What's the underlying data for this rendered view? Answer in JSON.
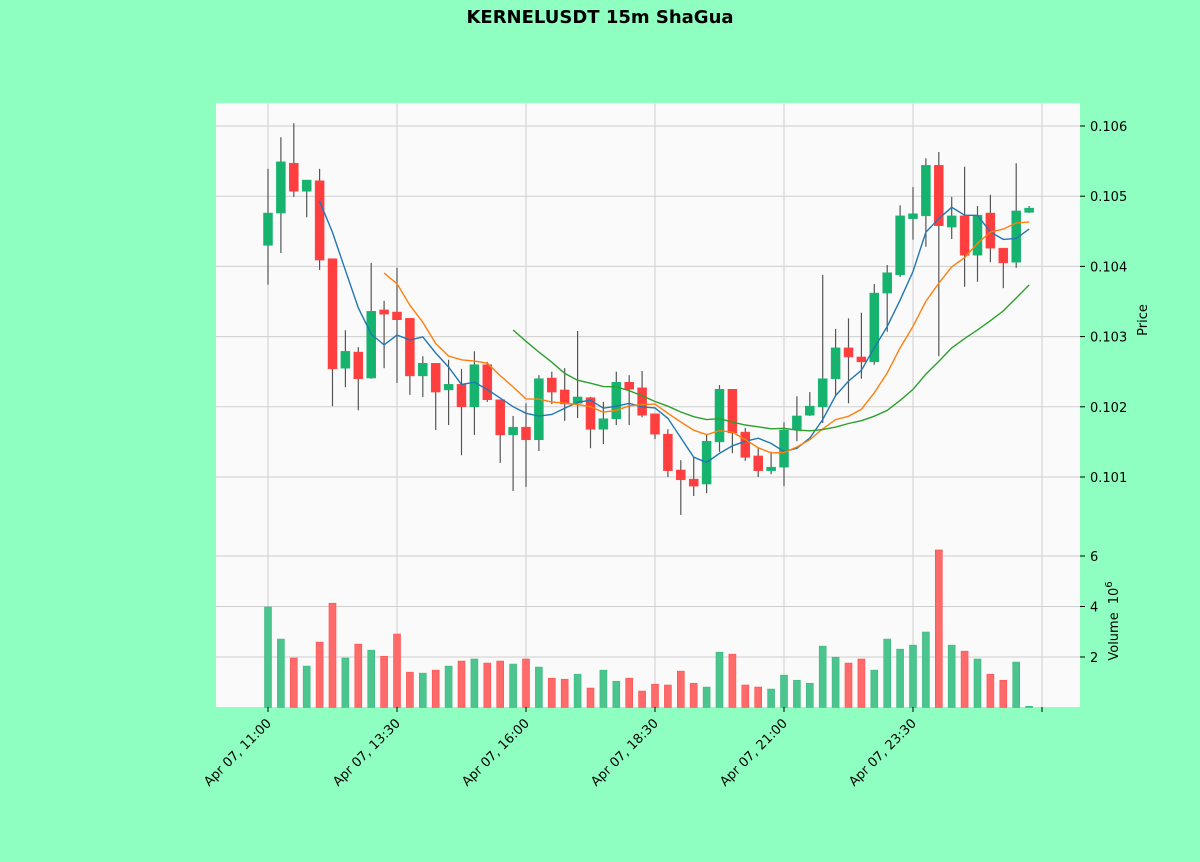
{
  "chart_data": {
    "type": "candlestick",
    "title": "KERNELUSDT 15m ShaGua",
    "ylabel": "Price",
    "volume_label": "Volume",
    "volume_multiplier_label": "10",
    "volume_multiplier_exp": "6",
    "ylim": [
      0.10037,
      0.10633
    ],
    "volume_ylim": [
      0,
      6.8
    ],
    "price_ticks": [
      0.101,
      0.102,
      0.103,
      0.104,
      0.105,
      0.106
    ],
    "price_tick_labels": [
      "0.101",
      "0.102",
      "0.103",
      "0.104",
      "0.105",
      "0.106"
    ],
    "volume_ticks": [
      2,
      4,
      6
    ],
    "volume_tick_labels": [
      "2",
      "4",
      "6"
    ],
    "xticks": [
      {
        "index": 0,
        "label": "Apr 07, 11:00"
      },
      {
        "index": 10,
        "label": "Apr 07, 13:30"
      },
      {
        "index": 20,
        "label": "Apr 07, 16:00"
      },
      {
        "index": 30,
        "label": "Apr 07, 18:30"
      },
      {
        "index": 40,
        "label": "Apr 07, 21:00"
      },
      {
        "index": 50,
        "label": "Apr 07, 23:30"
      },
      {
        "index": 60,
        "label": ""
      }
    ],
    "grid": true,
    "moving_averages": [
      {
        "period": 5,
        "color": "#1f77b4"
      },
      {
        "period": 10,
        "color": "#ff7f0e"
      },
      {
        "period": 20,
        "color": "#2ca02c"
      }
    ],
    "colors": {
      "up": "#16b36e",
      "down": "#ff3f3f",
      "up_volume": "#4bc48e",
      "down_volume": "#ff6a6a",
      "background": "#8effc1",
      "plot_background": "#fafafa"
    },
    "ohlc": [
      [
        0.1043,
        0.10539,
        0.10374,
        0.10476
      ],
      [
        0.10476,
        0.10584,
        0.10419,
        0.10549
      ],
      [
        0.10547,
        0.10604,
        0.10499,
        0.10507
      ],
      [
        0.10507,
        0.10523,
        0.1047,
        0.10523
      ],
      [
        0.10522,
        0.10539,
        0.10395,
        0.10409
      ],
      [
        0.10411,
        0.10411,
        0.10201,
        0.10254
      ],
      [
        0.10255,
        0.10309,
        0.10228,
        0.10279
      ],
      [
        0.10278,
        0.10285,
        0.10195,
        0.1024
      ],
      [
        0.10241,
        0.10405,
        0.1024,
        0.10336
      ],
      [
        0.10338,
        0.10351,
        0.10255,
        0.10332
      ],
      [
        0.10335,
        0.10398,
        0.10234,
        0.10324
      ],
      [
        0.10326,
        0.10326,
        0.10217,
        0.10244
      ],
      [
        0.10244,
        0.10272,
        0.10214,
        0.10262
      ],
      [
        0.10262,
        0.10262,
        0.10167,
        0.10221
      ],
      [
        0.10224,
        0.10267,
        0.10174,
        0.10232
      ],
      [
        0.10232,
        0.10254,
        0.10131,
        0.102
      ],
      [
        0.102,
        0.10279,
        0.1016,
        0.1026
      ],
      [
        0.1026,
        0.10264,
        0.10207,
        0.1021
      ],
      [
        0.1021,
        0.1021,
        0.1012,
        0.1016
      ],
      [
        0.1016,
        0.10187,
        0.1008,
        0.10171
      ],
      [
        0.10171,
        0.10205,
        0.10086,
        0.10153
      ],
      [
        0.10153,
        0.10245,
        0.10137,
        0.1024
      ],
      [
        0.10241,
        0.1025,
        0.10204,
        0.10221
      ],
      [
        0.10224,
        0.10255,
        0.1018,
        0.10204
      ],
      [
        0.10205,
        0.10308,
        0.10184,
        0.10214
      ],
      [
        0.10213,
        0.10214,
        0.10141,
        0.10168
      ],
      [
        0.10168,
        0.10207,
        0.10147,
        0.10183
      ],
      [
        0.10183,
        0.1025,
        0.10174,
        0.10235
      ],
      [
        0.10235,
        0.10245,
        0.10174,
        0.10225
      ],
      [
        0.10227,
        0.10251,
        0.10185,
        0.10188
      ],
      [
        0.1019,
        0.1019,
        0.10154,
        0.10161
      ],
      [
        0.10161,
        0.10168,
        0.101,
        0.10109
      ],
      [
        0.1011,
        0.10124,
        0.10046,
        0.10096
      ],
      [
        0.10097,
        0.10128,
        0.10073,
        0.10087
      ],
      [
        0.1009,
        0.10161,
        0.10077,
        0.10151
      ],
      [
        0.1015,
        0.10231,
        0.10136,
        0.10225
      ],
      [
        0.10225,
        0.10225,
        0.10134,
        0.10163
      ],
      [
        0.10164,
        0.1017,
        0.10123,
        0.10128
      ],
      [
        0.1013,
        0.10141,
        0.101,
        0.10109
      ],
      [
        0.10109,
        0.10136,
        0.10104,
        0.10114
      ],
      [
        0.10114,
        0.10178,
        0.10087,
        0.10167
      ],
      [
        0.10168,
        0.10215,
        0.10151,
        0.10187
      ],
      [
        0.10188,
        0.10221,
        0.10187,
        0.10201
      ],
      [
        0.102,
        0.10388,
        0.10177,
        0.1024
      ],
      [
        0.1024,
        0.10311,
        0.10217,
        0.10284
      ],
      [
        0.10284,
        0.10326,
        0.10205,
        0.10271
      ],
      [
        0.10271,
        0.10334,
        0.1024,
        0.10264
      ],
      [
        0.10264,
        0.10375,
        0.1026,
        0.10362
      ],
      [
        0.10362,
        0.10402,
        0.10307,
        0.10391
      ],
      [
        0.10388,
        0.10487,
        0.10385,
        0.10472
      ],
      [
        0.10468,
        0.10513,
        0.10438,
        0.10475
      ],
      [
        0.10472,
        0.10554,
        0.10428,
        0.10544
      ],
      [
        0.10544,
        0.10563,
        0.10272,
        0.10458
      ],
      [
        0.10456,
        0.10499,
        0.10439,
        0.10472
      ],
      [
        0.10472,
        0.10542,
        0.10371,
        0.10416
      ],
      [
        0.10416,
        0.10486,
        0.10378,
        0.10473
      ],
      [
        0.10476,
        0.10502,
        0.10406,
        0.10426
      ],
      [
        0.10426,
        0.10426,
        0.10369,
        0.10405
      ],
      [
        0.10406,
        0.10547,
        0.10398,
        0.10479
      ],
      [
        0.10477,
        0.10486,
        0.10476,
        0.10483
      ]
    ],
    "volume": [
      3.98,
      2.71,
      1.96,
      1.64,
      2.59,
      4.13,
      1.96,
      2.51,
      2.27,
      2.03,
      2.91,
      1.4,
      1.36,
      1.48,
      1.64,
      1.84,
      1.92,
      1.76,
      1.84,
      1.72,
      1.92,
      1.6,
      1.16,
      1.12,
      1.32,
      0.77,
      1.48,
      1.04,
      1.16,
      0.65,
      0.92,
      0.89,
      1.44,
      0.96,
      0.81,
      2.19,
      2.11,
      0.89,
      0.81,
      0.73,
      1.28,
      1.08,
      0.96,
      2.43,
      1.99,
      1.76,
      1.92,
      1.48,
      2.71,
      2.31,
      2.47,
      2.99,
      6.24,
      2.47,
      2.23,
      1.92,
      1.32,
      1.08,
      1.8,
      0.05
    ]
  }
}
